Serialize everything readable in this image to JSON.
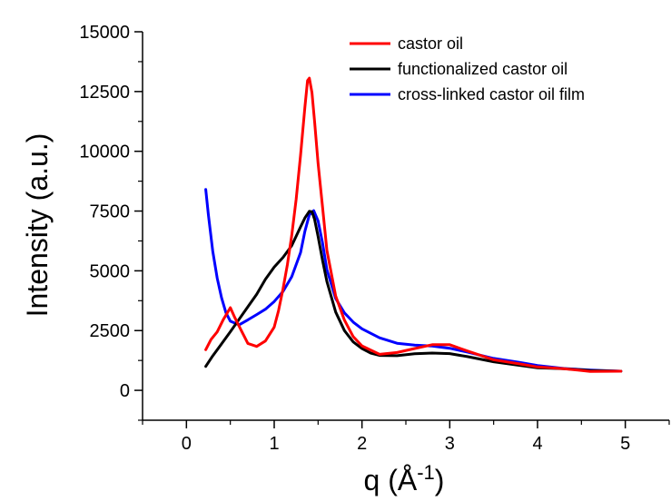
{
  "chart_data": {
    "type": "line",
    "title": "",
    "xlabel": "q (Å-1)",
    "xlabel_parts": {
      "main": "q (Å",
      "sup": "-1",
      "close": ")"
    },
    "ylabel": "Intensity (a.u.)",
    "xlim": [
      -0.5,
      5.5
    ],
    "ylim": [
      -1250,
      15000
    ],
    "xticks": [
      0,
      1,
      2,
      3,
      4,
      5
    ],
    "yticks": [
      0,
      2500,
      5000,
      7500,
      10000,
      12500,
      15000
    ],
    "grid": false,
    "legend_position": "top-right",
    "series": [
      {
        "name": "castor oil",
        "color": "#ff0000",
        "x": [
          0.22,
          0.28,
          0.35,
          0.42,
          0.5,
          0.55,
          0.62,
          0.7,
          0.8,
          0.9,
          1.0,
          1.05,
          1.1,
          1.15,
          1.2,
          1.25,
          1.3,
          1.35,
          1.38,
          1.4,
          1.43,
          1.46,
          1.5,
          1.55,
          1.6,
          1.7,
          1.8,
          1.9,
          2.0,
          2.1,
          2.2,
          2.4,
          2.6,
          2.8,
          3.0,
          3.2,
          3.5,
          3.8,
          4.0,
          4.3,
          4.6,
          4.95
        ],
        "y": [
          1700,
          2100,
          2400,
          2900,
          3400,
          3000,
          2500,
          1950,
          1850,
          2100,
          2700,
          3400,
          4300,
          5300,
          6500,
          8000,
          9800,
          11800,
          12900,
          13000,
          12400,
          11200,
          9500,
          7700,
          5900,
          4000,
          3000,
          2300,
          1900,
          1700,
          1500,
          1550,
          1700,
          1850,
          1850,
          1600,
          1250,
          1100,
          1000,
          950,
          850,
          800
        ]
      },
      {
        "name": "functionalized castor oil",
        "color": "#000000",
        "x": [
          0.22,
          0.3,
          0.4,
          0.5,
          0.6,
          0.7,
          0.8,
          0.9,
          1.0,
          1.1,
          1.2,
          1.3,
          1.35,
          1.4,
          1.43,
          1.46,
          1.5,
          1.55,
          1.6,
          1.7,
          1.8,
          1.9,
          2.0,
          2.1,
          2.2,
          2.4,
          2.6,
          2.8,
          3.0,
          3.2,
          3.5,
          3.8,
          4.0,
          4.3,
          4.6,
          4.95
        ],
        "y": [
          1000,
          1500,
          2000,
          2500,
          3000,
          3500,
          4000,
          4600,
          5100,
          5500,
          6000,
          6800,
          7200,
          7500,
          7500,
          7200,
          6500,
          5500,
          4600,
          3300,
          2500,
          2000,
          1700,
          1500,
          1400,
          1400,
          1500,
          1550,
          1550,
          1450,
          1250,
          1100,
          1000,
          950,
          850,
          800
        ]
      },
      {
        "name": "cross-linked castor oil film",
        "color": "#0000ff",
        "x": [
          0.22,
          0.25,
          0.3,
          0.35,
          0.4,
          0.45,
          0.5,
          0.6,
          0.7,
          0.8,
          0.9,
          1.0,
          1.1,
          1.2,
          1.3,
          1.35,
          1.4,
          1.45,
          1.5,
          1.55,
          1.6,
          1.7,
          1.8,
          1.9,
          2.0,
          2.2,
          2.4,
          2.6,
          2.8,
          3.0,
          3.2,
          3.5,
          3.8,
          4.0,
          4.3,
          4.6,
          4.95
        ],
        "y": [
          8400,
          7300,
          5800,
          4700,
          3900,
          3300,
          2950,
          2800,
          3000,
          3200,
          3400,
          3700,
          4100,
          4700,
          5700,
          6600,
          7300,
          7500,
          7100,
          6200,
          5100,
          3900,
          3300,
          2900,
          2600,
          2200,
          1950,
          1850,
          1800,
          1700,
          1550,
          1300,
          1150,
          1050,
          950,
          900,
          800
        ]
      }
    ]
  }
}
